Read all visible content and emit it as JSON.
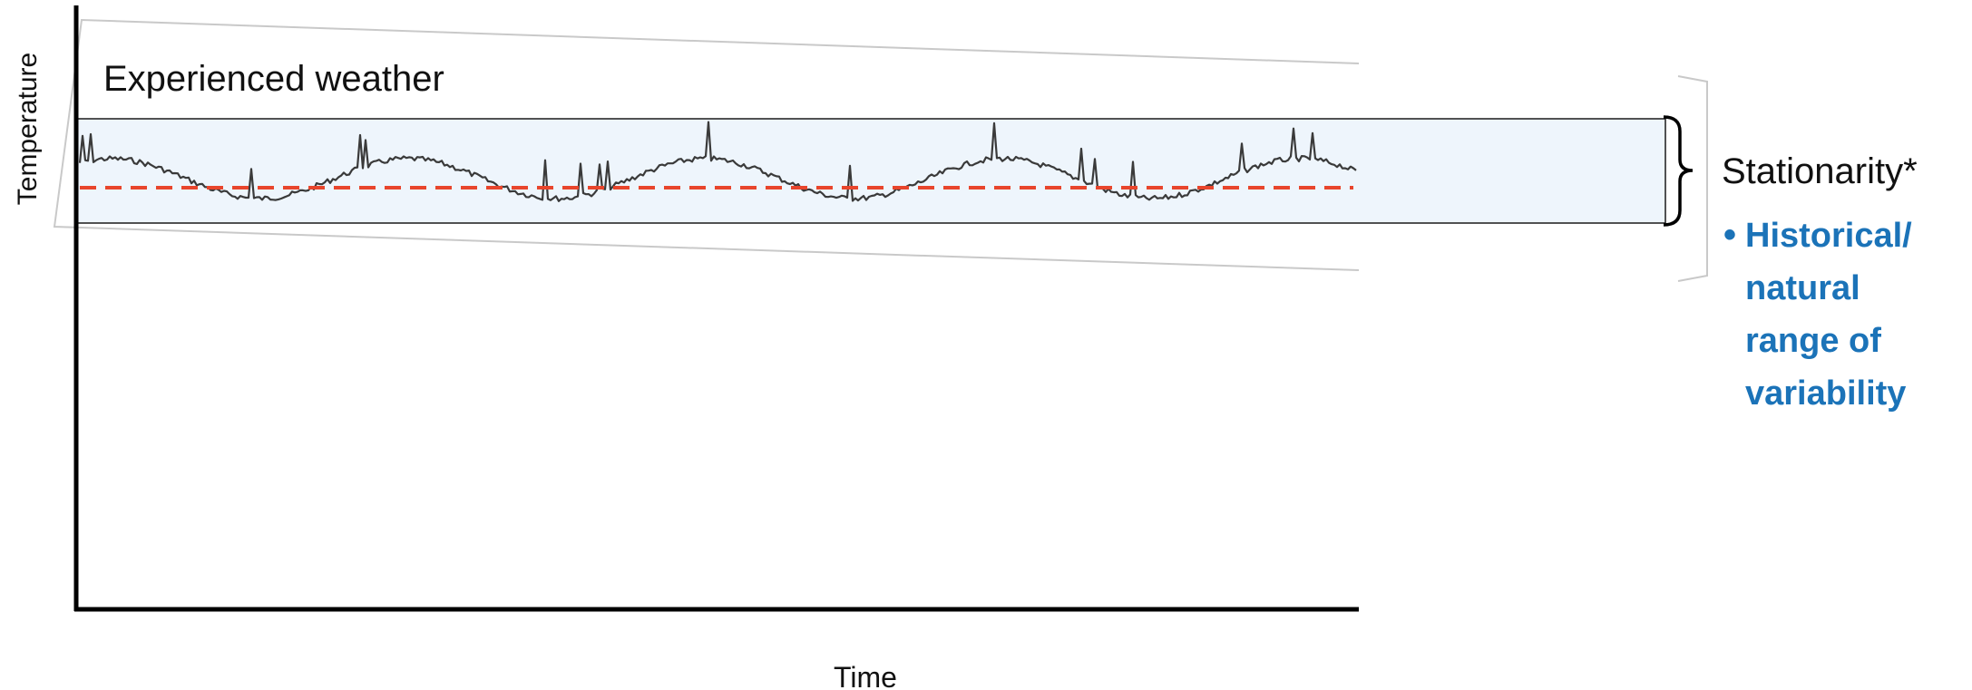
{
  "axes": {
    "y_label": "Temperature",
    "x_label": "Time"
  },
  "annotations": {
    "experienced_weather": "Experienced weather",
    "stationarity": "Stationarity*",
    "bullet_symbol": "•",
    "bullet_lines": [
      "Historical/",
      "natural",
      "range of",
      "variability"
    ]
  },
  "colors": {
    "band_fill": "#eef5fc",
    "band_stroke": "#1a1a1a",
    "mean_line": "#e8452c",
    "trace": "#3a3a3a",
    "bullet_text": "#1b73b8",
    "outline_gray": "#c9c9c9"
  }
}
